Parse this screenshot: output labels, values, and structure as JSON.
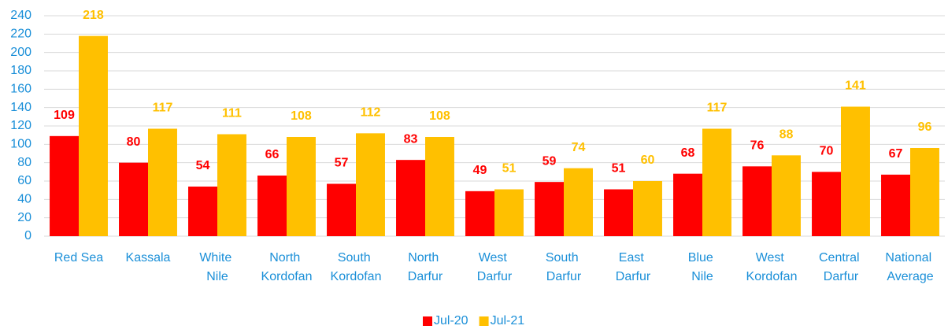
{
  "chart_data": {
    "type": "bar",
    "categories": [
      "Red Sea",
      "Kassala",
      "White Nile",
      "North Kordofan",
      "South Kordofan",
      "North Darfur",
      "West Darfur",
      "South Darfur",
      "East Darfur",
      "Blue Nile",
      "West Kordofan",
      "Central Darfur",
      "National Average"
    ],
    "series": [
      {
        "name": "Jul-20",
        "color": "#ff0000",
        "values": [
          109,
          80,
          54,
          66,
          57,
          83,
          49,
          59,
          51,
          68,
          76,
          70,
          67
        ]
      },
      {
        "name": "Jul-21",
        "color": "#ffc000",
        "values": [
          218,
          117,
          111,
          108,
          112,
          108,
          51,
          74,
          60,
          117,
          88,
          141,
          96
        ]
      }
    ],
    "ylim": [
      0,
      240
    ],
    "yticks": [
      0,
      20,
      40,
      60,
      80,
      100,
      120,
      140,
      160,
      180,
      200,
      220,
      240
    ],
    "grid": true,
    "legend": "bottom"
  }
}
